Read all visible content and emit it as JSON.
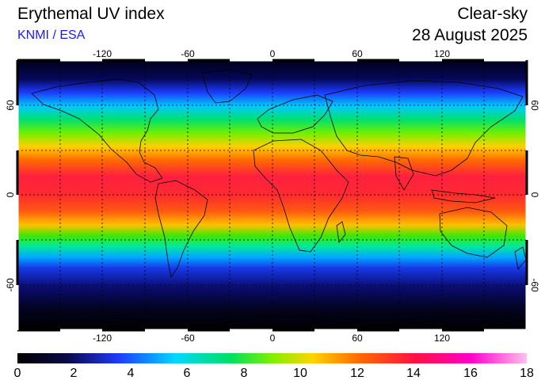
{
  "header": {
    "title": "Erythemal UV index",
    "source": "KNMI / ESA",
    "condition": "Clear-sky",
    "date": "28 August 2025"
  },
  "map": {
    "projection": "equirectangular",
    "lon_ticks": [
      "-120",
      "-60",
      "0",
      "60",
      "120"
    ],
    "lat_ticks": [
      "60",
      "0",
      "-60"
    ],
    "gridlines": "dotted every 30 degrees"
  },
  "colorbar": {
    "min": 0,
    "max": 18,
    "labels": [
      "0",
      "2",
      "4",
      "6",
      "8",
      "10",
      "12",
      "14",
      "16",
      "18"
    ],
    "colors": [
      "#000000",
      "#0a0a4a",
      "#1f3cff",
      "#00d8ff",
      "#00e060",
      "#80f000",
      "#ffd400",
      "#ff6a00",
      "#ff1040",
      "#ff00c8",
      "#ffc0f0"
    ]
  }
}
